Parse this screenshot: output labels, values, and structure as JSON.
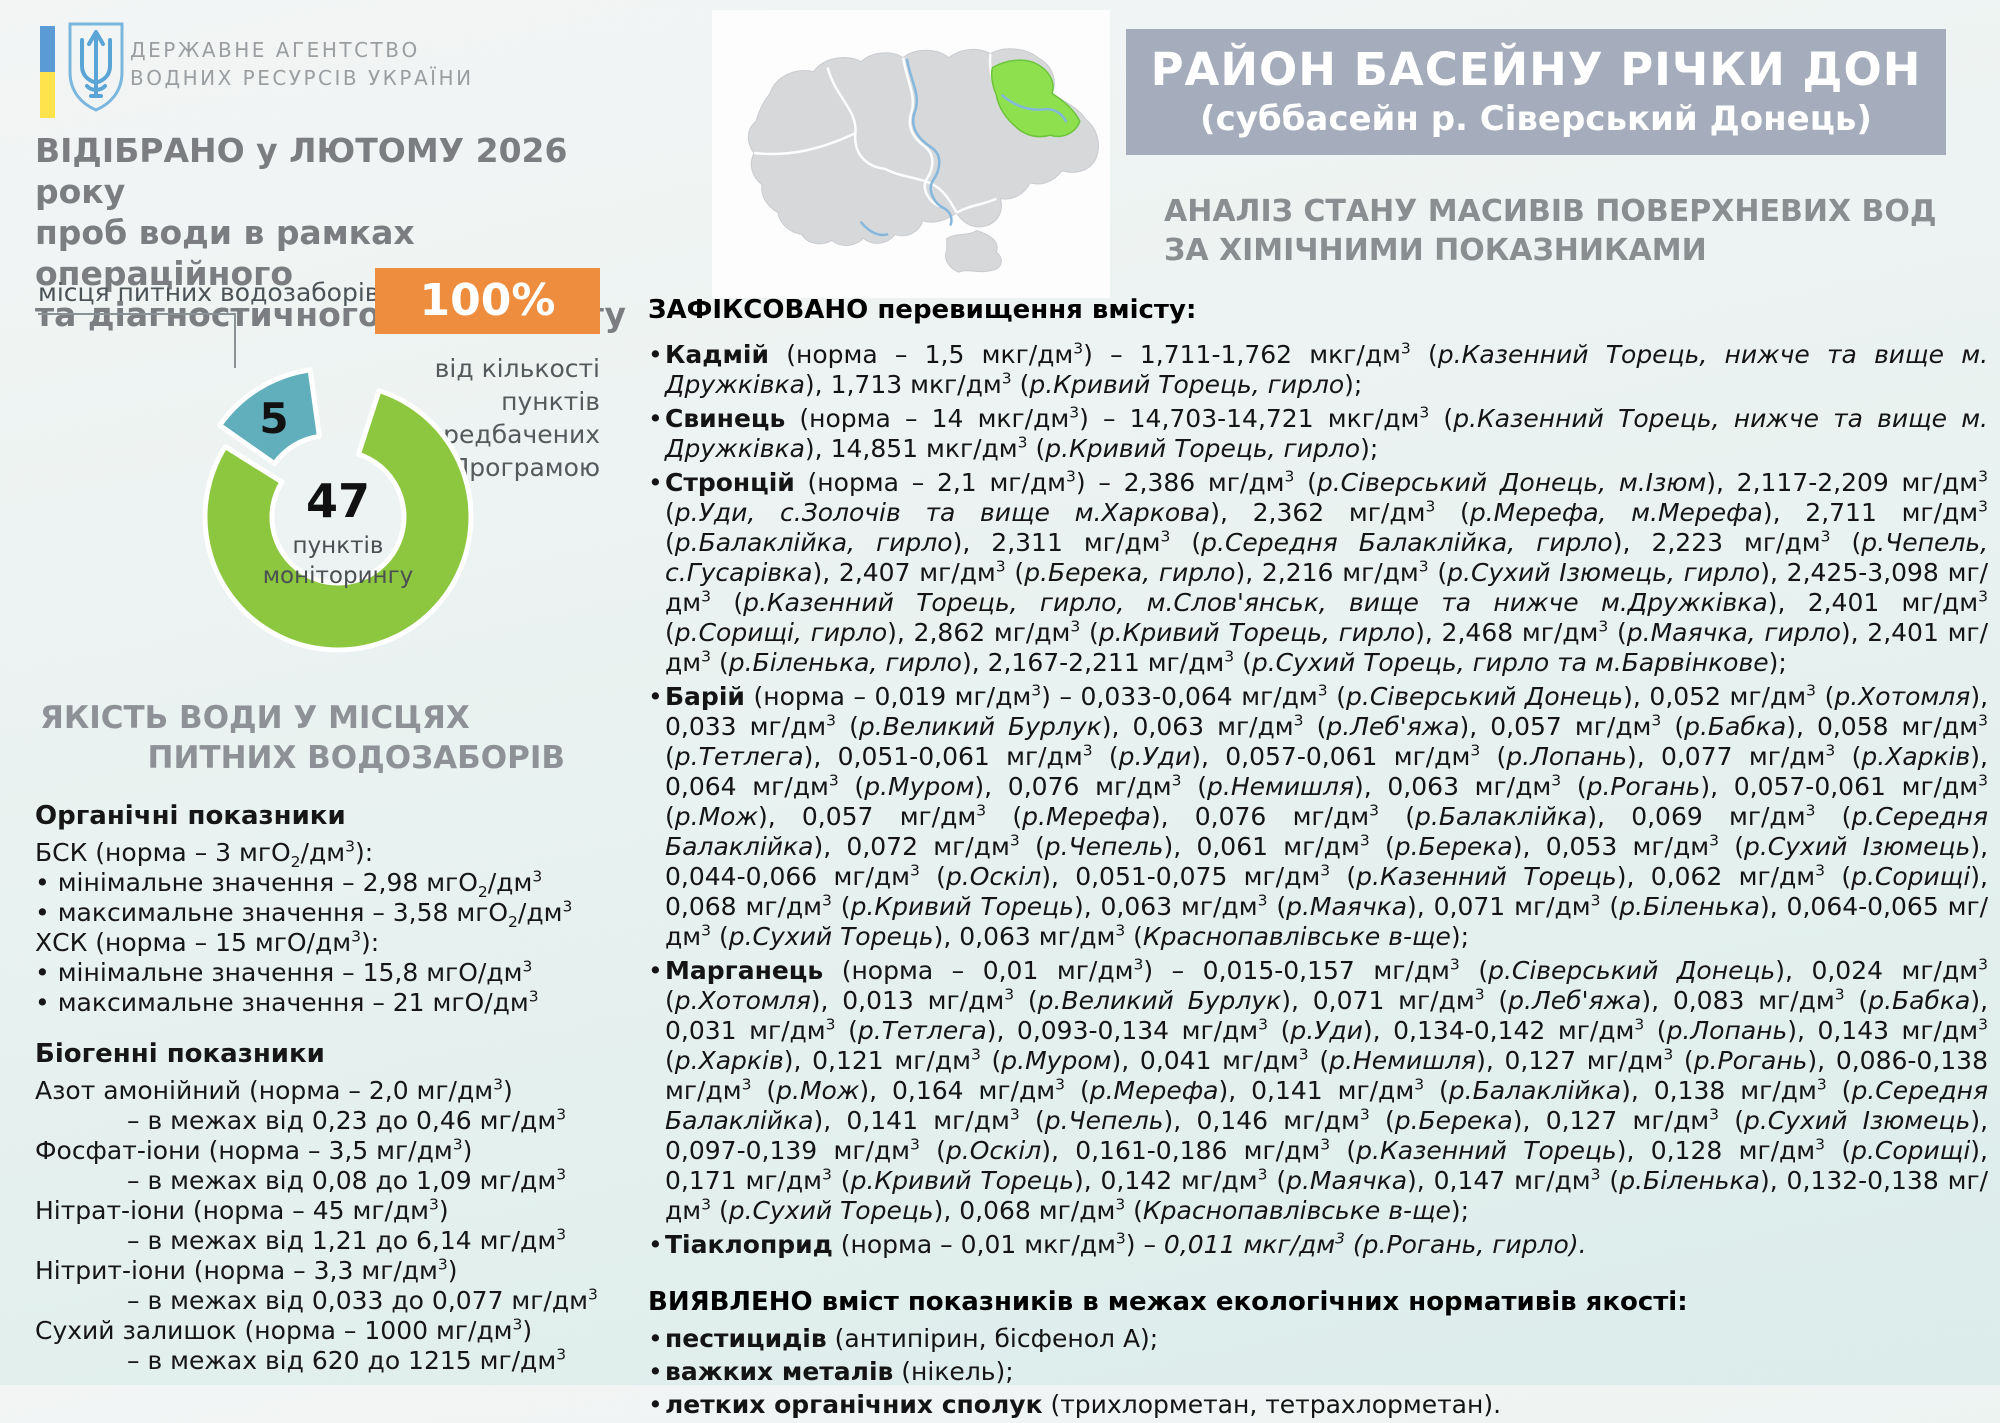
{
  "colors": {
    "accent_orange": "#ee8d3e",
    "donut_green": "#8dc63f",
    "donut_teal": "#61aebc",
    "banner_gray": "#a5acbc",
    "map_highlight_green": "#8ee04f"
  },
  "agency": {
    "line1": "ДЕРЖАВНЕ  АГЕНТСТВО",
    "line2": "ВОДНИХ  РЕСУРСІВ  УКРАЇНИ"
  },
  "left": {
    "headline_lines": [
      "ВІДІБРАНО у ЛЮТОМУ 2026 року",
      "проб води в рамках операційного",
      "та діагностичного моніторингу"
    ],
    "callout_label": "місця питних водозаборів",
    "badge_percent": "100%",
    "badge_caption_lines": [
      "від кількості пунктів",
      "передбачених",
      "Програмою"
    ],
    "quality_header_lines": [
      "ЯКІСТЬ ВОДИ У МІСЦЯХ",
      "ПИТНИХ ВОДОЗАБОРІВ"
    ],
    "organic": {
      "header": "Органічні показники",
      "lines": [
        "БСК (норма – 3 мгО_2/дм^3):",
        "• мінімальне значення – 2,98 мгО_2/дм^3",
        "• максимальне значення – 3,58 мгО_2/дм^3",
        "ХСК (норма – 15 мгО/дм^3):",
        "• мінімальне значення – 15,8 мгО/дм^3",
        "• максимальне значення – 21 мгО/дм^3"
      ]
    },
    "biogenic": {
      "header": "Біогенні показники",
      "items": [
        {
          "name": "Азот амонійний (норма – 2,0 мг/дм^3)",
          "range": "– в межах від 0,23 до 0,46 мг/дм^3"
        },
        {
          "name": "Фосфат-іони (норма – 3,5 мг/дм^3)",
          "range": "– в межах від 0,08 до 1,09 мг/дм^3"
        },
        {
          "name": "Нітрат-іони (норма – 45 мг/дм^3)",
          "range": "– в межах від 1,21 до 6,14 мг/дм^3"
        },
        {
          "name": "Нітрит-іони (норма – 3,3 мг/дм^3)",
          "range": "– в межах від 0,033 до 0,077 мг/дм^3"
        },
        {
          "name": "Сухий залишок (норма – 1000 мг/дм^3)",
          "range": "– в межах від 620 до 1215 мг/дм^3"
        }
      ]
    }
  },
  "chart_data": {
    "type": "pie",
    "segments": [
      {
        "label": "пунктів моніторингу",
        "value": 47,
        "color": "#8dc63f"
      },
      {
        "label": "місця питних водозаборів",
        "value": 5,
        "color": "#61aebc"
      }
    ],
    "center_value": "47",
    "center_label_line1": "пунктів",
    "center_label_line2": "моніторингу",
    "badge_value": "100%",
    "badge_caption": "від кількості пунктів передбачених Програмою"
  },
  "right": {
    "banner_line1": "РАЙОН БАСЕЙНУ РІЧКИ ДОН",
    "banner_line2": "(суббасейн р. Сіверський Донець)",
    "subtitle_lines": [
      "АНАЛІЗ СТАНУ МАСИВІВ ПОВЕРХНЕВИХ ВОД",
      "ЗА ХІМІЧНИМИ ПОКАЗНИКАМИ"
    ],
    "bullet_char": "•",
    "exceeded": {
      "heading": "ЗАФІКСОВАНО перевищення вмісту:",
      "items": [
        "**Кадмій** (норма – 1,5 мкг/дм^3) – 1,711-1,762 мкг/дм^3 (*р.Казенний Торець, нижче та вище м. Дружківка*), 1,713 мкг/дм^3 (*р.Кривий Торець, гирло*);",
        "**Свинець** (норма – 14 мкг/дм^3) – 14,703-14,721 мкг/дм^3 (*р.Казенний Торець, нижче та вище м. Дружківка*), 14,851 мкг/дм^3 (*р.Кривий Торець, гирло*);",
        "**Стронцій** (норма – 2,1 мг/дм^3) – 2,386 мг/дм^3 (*р.Сіверський Донець, м.Ізюм*), 2,117-2,209 мг/дм^3 (*р.Уди, с.Золочів та вище м.Харкова*), 2,362 мг/дм^3 (*р.Мерефа, м.Мерефа*), 2,711 мг/дм^3 (*р.Балаклійка, гирло*), 2,311 мг/дм^3 (*р.Середня Балаклійка, гирло*), 2,223 мг/дм^3 (*р.Чепель, с.Гусарівка*), 2,407 мг/дм^3 (*р.Берека, гирло*), 2,216 мг/дм^3 (*р.Сухий Ізюмець, гирло*), 2,425-3,098 мг/дм^3 (*р.Казенний Торець, гирло, м.Слов'янськ, вище та нижче м.Дружківка*), 2,401 мг/дм^3 (*р.Сорищі, гирло*), 2,862 мг/дм^3 (*р.Кривий Торець, гирло*), 2,468 мг/дм^3 (*р.Маячка, гирло*), 2,401 мг/дм^3 (*р.Біленька, гирло*), 2,167-2,211 мг/дм^3 (*р.Сухий Торець, гирло та м.Барвінкове*);",
        "**Барій** (норма – 0,019 мг/дм^3) – 0,033-0,064 мг/дм^3 (*р.Сіверський Донець*), 0,052 мг/дм^3 (*р.Хотомля*), 0,033 мг/дм^3 (*р.Великий Бурлук*), 0,063 мг/дм^3 (*р.Леб'яжа*), 0,057 мг/дм^3 (*р.Бабка*), 0,058 мг/дм^3 (*р.Тетлега*), 0,051-0,061 мг/дм^3 (*р.Уди*), 0,057-0,061 мг/дм^3 (*р.Лопань*), 0,077 мг/дм^3 (*р.Харків*), 0,064 мг/дм^3 (*р.Муром*), 0,076 мг/дм^3 (*р.Немишля*), 0,063 мг/дм^3 (*р.Рогань*), 0,057-0,061 мг/дм^3 (*р.Мож*), 0,057 мг/дм^3 (*р.Мерефа*), 0,076 мг/дм^3 (*р.Балаклійка*), 0,069 мг/дм^3 (*р.Середня Балаклійка*), 0,072 мг/дм^3 (*р.Чепель*), 0,061 мг/дм^3 (*р.Берека*), 0,053 мг/дм^3 (*р.Сухий Ізюмець*), 0,044-0,066 мг/дм^3 (*р.Оскіл*), 0,051-0,075 мг/дм^3 (*р.Казенний Торець*), 0,062 мг/дм^3 (*р.Сорищі*), 0,068 мг/дм^3 (*р.Кривий Торець*), 0,063 мг/дм^3 (*р.Маячка*), 0,071 мг/дм^3 (*р.Біленька*), 0,064-0,065 мг/дм^3 (*р.Сухий Торець*), 0,063 мг/дм^3 (*Краснопавлівське в-ще*);",
        "**Марганець** (норма – 0,01 мг/дм^3) – 0,015-0,157 мг/дм^3 (*р.Сіверський Донець*), 0,024 мг/дм^3 (*р.Хотомля*), 0,013 мг/дм^3 (*р.Великий Бурлук*), 0,071 мг/дм^3 (*р.Леб'яжа*), 0,083 мг/дм^3 (*р.Бабка*), 0,031 мг/дм^3 (*р.Тетлега*), 0,093-0,134 мг/дм^3 (*р.Уди*), 0,134-0,142 мг/дм^3 (*р.Лопань*), 0,143 мг/дм^3 (*р.Харків*), 0,121 мг/дм^3 (*р.Муром*), 0,041 мг/дм^3 (*р.Немишля*), 0,127 мг/дм^3 (*р.Рогань*), 0,086-0,138 мг/дм^3 (*р.Мож*), 0,164 мг/дм^3 (*р.Мерефа*), 0,141 мг/дм^3 (*р.Балаклійка*), 0,138 мг/дм^3 (*р.Середня Балаклійка*), 0,141 мг/дм^3 (*р.Чепель*), 0,146 мг/дм^3 (*р.Берека*), 0,127 мг/дм^3 (*р.Сухий Ізюмець*), 0,097-0,139 мг/дм^3 (*р.Оскіл*), 0,161-0,186 мг/дм^3 (*р.Казенний Торець*), 0,128 мг/дм^3 (*р.Сорищі*), 0,171 мг/дм^3 (*р.Кривий Торець*), 0,142 мг/дм^3 (*р.Маячка*), 0,147 мг/дм^3 (*р.Біленька*), 0,132-0,138 мг/дм^3 (*р.Сухий Торець*), 0,068 мг/дм^3 (*Краснопавлівське в-ще*);",
        "**Тіаклоприд** (норма – 0,01 мкг/дм^3) – *0,011 мкг/дм^3 (р.Рогань, гирло).*"
      ]
    },
    "within_norms": {
      "heading": "ВИЯВЛЕНО вміст показників в межах екологічних нормативів якості:",
      "items": [
        "**пестицидів** (антипірин, бісфенол А);",
        "**важких металів** (нікель);",
        "**летких органічних сполук** (трихлорметан, тетрахлорметан)."
      ]
    }
  }
}
